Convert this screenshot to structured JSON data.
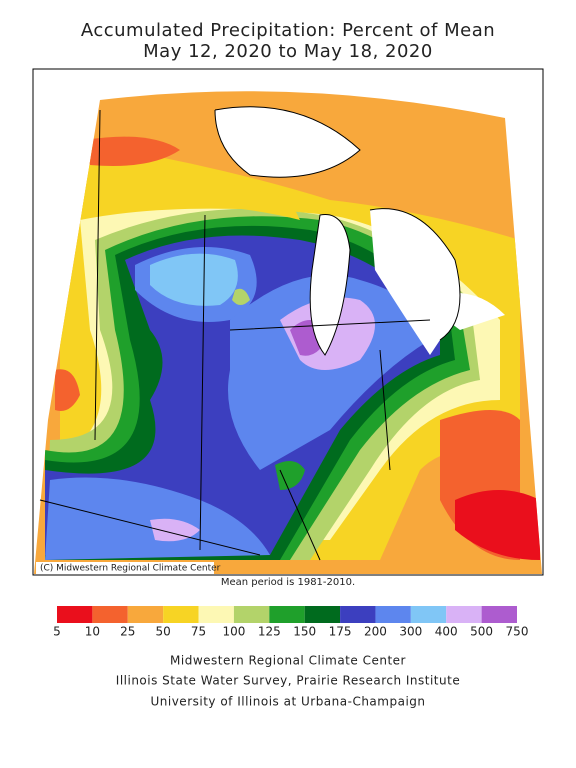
{
  "header": {
    "title": "Accumulated Precipitation: Percent of Mean",
    "subtitle": "May 12, 2020 to May 18, 2020"
  },
  "map": {
    "copyright": "(C) Midwestern Regional Climate Center",
    "note": "Mean period is 1981-2010."
  },
  "legend": {
    "ticks": [
      5,
      10,
      25,
      50,
      75,
      100,
      125,
      150,
      175,
      200,
      300,
      400,
      500,
      750
    ],
    "colors": [
      "#ea0f1c",
      "#f4622e",
      "#f8a83c",
      "#f7d424",
      "#fdf8b4",
      "#b3d36a",
      "#1fa02b",
      "#006b1e",
      "#3c3fbf",
      "#5d86ee",
      "#80c6f6",
      "#d9b2f6",
      "#ad5ccf"
    ]
  },
  "footer": {
    "lines": [
      "Midwestern Regional Climate Center",
      "Illinois State Water Survey, Prairie Research Institute",
      "University of Illinois at Urbana-Champaign"
    ]
  }
}
